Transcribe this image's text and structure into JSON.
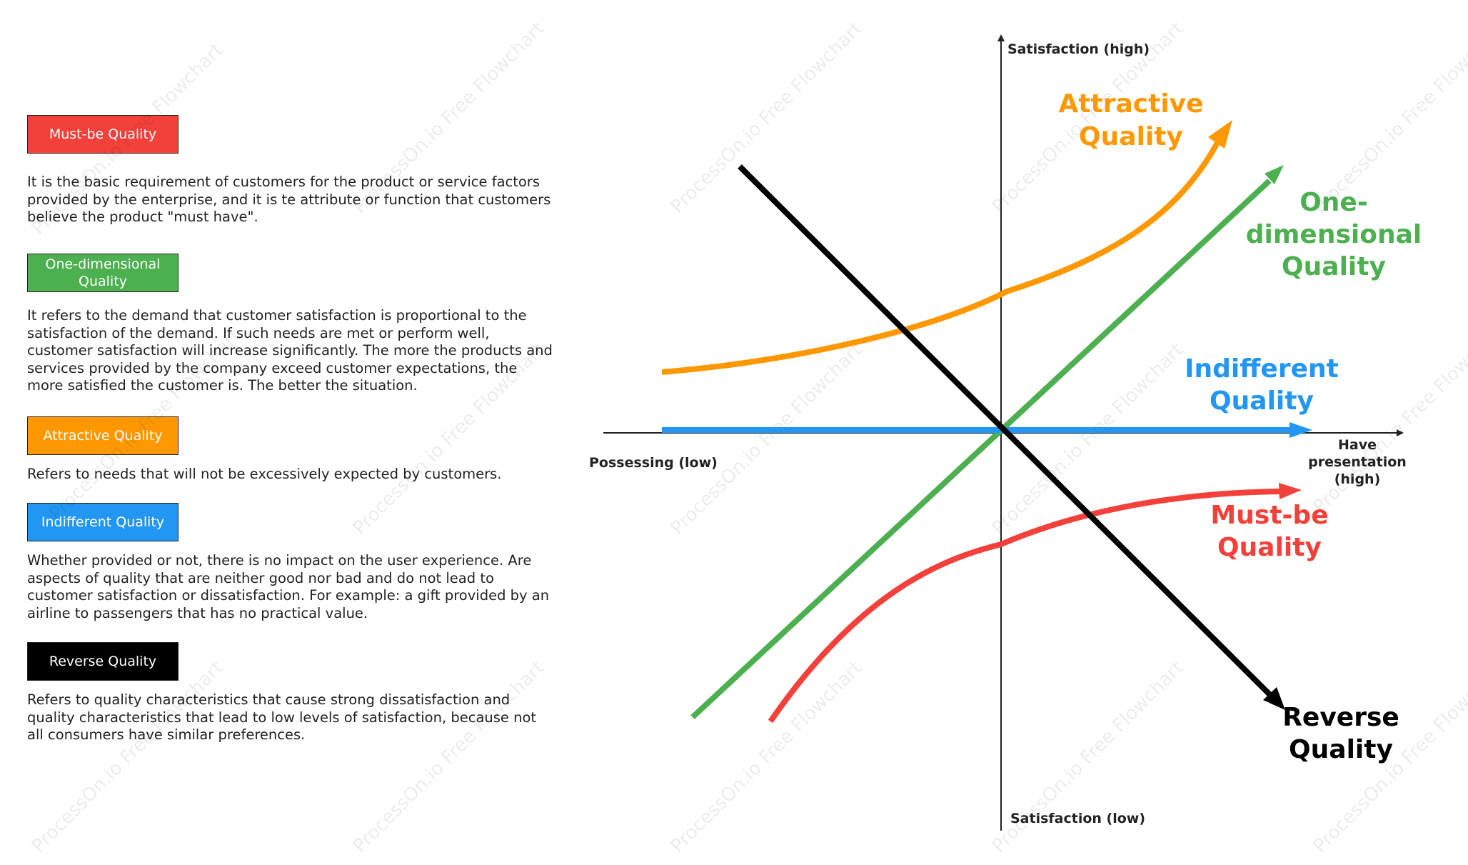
{
  "legend": [
    {
      "key": "must_be",
      "label": "Must-be Quality",
      "color": "#f4403a",
      "desc": "It is the basic requirement of customers for the product or service factors provided by the enterprise, and it is te attribute or function that customers believe the product \"must have\"."
    },
    {
      "key": "one_dim",
      "label": "One-dimensional Quality",
      "color": "#4caf50",
      "desc": "It refers to the demand that customer satisfaction is proportional to the satisfaction of the demand. If such needs are met or perform well, customer satisfaction will increase significantly. The more the products and services provided by the company exceed customer expectations, the more satisfied the customer is. The better the situation."
    },
    {
      "key": "attractive",
      "label": "Attractive Quality",
      "color": "#ff9800",
      "desc": "Refers to needs that will not be excessively expected by customers."
    },
    {
      "key": "indifferent",
      "label": "Indifferent Quality",
      "color": "#2196f3",
      "desc": "Whether provided or not, there is no impact on the user experience. Are aspects of quality that are neither good nor bad and do not lead to customer satisfaction or dissatisfaction. For example: a gift provided by an airline to passengers that has no practical value."
    },
    {
      "key": "reverse",
      "label": "Reverse Quality",
      "color": "#000000",
      "desc": "Refers to quality characteristics that cause strong dissatisfaction and quality characteristics that lead to low levels of satisfaction, because not all consumers have similar preferences."
    }
  ],
  "axes": {
    "y_top": "Satisfaction (high)",
    "y_bottom": "Satisfaction (low)",
    "x_left": "Possessing (low)",
    "x_right_lines": [
      "Have",
      "presentation",
      "(high)"
    ]
  },
  "curve_labels": {
    "attractive": [
      "Attractive",
      "Quality"
    ],
    "one_dim": [
      "One-",
      "dimensional",
      "Quality"
    ],
    "indifferent": [
      "Indifferent",
      "Quality"
    ],
    "must_be": [
      "Must-be",
      "Quality"
    ],
    "reverse": [
      "Reverse",
      "Quality"
    ]
  },
  "watermark": "ProcessOn.io Free Flowchart"
}
